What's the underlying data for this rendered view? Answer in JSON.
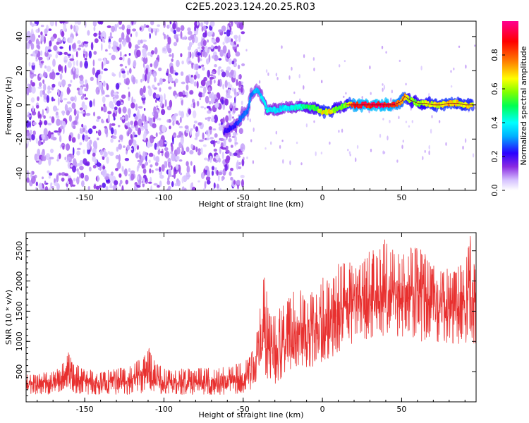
{
  "chart_data": [
    {
      "type": "heatmap",
      "title": "C2E5.2023.124.20.25.R03",
      "xlabel": "Height of straight line (km)",
      "ylabel": "Frequency (Hz)",
      "xlim": [
        -187,
        97
      ],
      "ylim": [
        -50,
        49
      ],
      "xticks": [
        -150,
        -100,
        -50,
        0,
        50
      ],
      "yticks": [
        -40,
        -20,
        0,
        20,
        40
      ],
      "colorbar": {
        "label": "Normalized spectral amplitude",
        "range": [
          0,
          1
        ],
        "ticks": [
          "0.0",
          "0.2",
          "0.4",
          "0.6",
          "0.8"
        ],
        "tick_values": [
          0.0,
          0.2,
          0.4,
          0.6,
          0.8
        ],
        "colors": [
          "#ffffff",
          "#c9a8ff",
          "#8a2be2",
          "#2a00ff",
          "#00b0ff",
          "#00ffff",
          "#00ff50",
          "#80ff00",
          "#ffff00",
          "#ff8000",
          "#ff0000",
          "#ff0090"
        ]
      },
      "noise_region": {
        "x_from": -187,
        "x_to": -50,
        "freq_from": -50,
        "freq_to": 49,
        "typical_amplitude": 0.15
      },
      "signal_ridge": {
        "x": [
          -62,
          -55,
          -50,
          -47,
          -45,
          -42,
          -40,
          -37,
          -35,
          -30,
          -25,
          -20,
          -15,
          -10,
          -5,
          0,
          5,
          10,
          15,
          20,
          30,
          40,
          45,
          50,
          52,
          55,
          60,
          65,
          70,
          75,
          80,
          85,
          90,
          95
        ],
        "frequency": [
          -16,
          -12,
          -6,
          -3,
          6,
          9,
          8,
          2,
          -3,
          -3,
          -2,
          -2,
          -1,
          -1,
          -2,
          -4,
          -4,
          -2,
          0,
          0,
          0,
          0,
          0,
          2,
          5,
          3,
          1,
          1,
          0,
          0,
          1,
          1,
          0,
          0
        ],
        "amplitude": [
          0.2,
          0.25,
          0.3,
          0.3,
          0.3,
          0.35,
          0.35,
          0.4,
          0.42,
          0.4,
          0.4,
          0.4,
          0.45,
          0.5,
          0.55,
          0.7,
          0.7,
          0.55,
          0.6,
          0.9,
          0.95,
          0.95,
          0.9,
          0.8,
          0.75,
          0.6,
          0.6,
          0.65,
          0.7,
          0.7,
          0.75,
          0.7,
          0.7,
          0.7
        ]
      }
    },
    {
      "type": "line",
      "xlabel": "Height of straight line (km)",
      "ylabel": "SNR (10 * v/v)",
      "xlim": [
        -187,
        97
      ],
      "ylim": [
        0,
        2800
      ],
      "xticks": [
        -150,
        -100,
        -50,
        0,
        50
      ],
      "yticks": [
        500,
        1000,
        1500,
        2000,
        2500
      ],
      "series": [
        {
          "name": "SNR",
          "color": "#e8302f",
          "x": [
            -187,
            -170,
            -162,
            -160,
            -158,
            -150,
            -140,
            -120,
            -112,
            -110,
            -107,
            -100,
            -80,
            -60,
            -50,
            -45,
            -40,
            -38,
            -35,
            -33,
            -30,
            -25,
            -20,
            -15,
            -10,
            -5,
            0,
            5,
            10,
            15,
            20,
            25,
            30,
            40,
            50,
            60,
            70,
            80,
            90,
            93,
            97
          ],
          "high": [
            450,
            500,
            700,
            850,
            650,
            550,
            500,
            600,
            800,
            950,
            700,
            550,
            550,
            600,
            650,
            800,
            1300,
            2100,
            2000,
            1400,
            1500,
            1600,
            1800,
            1900,
            1700,
            1900,
            2100,
            2000,
            2300,
            2400,
            2200,
            2400,
            2500,
            2700,
            2500,
            2600,
            2300,
            2200,
            2300,
            2800,
            2200
          ],
          "low": [
            120,
            120,
            200,
            250,
            150,
            120,
            120,
            120,
            150,
            200,
            150,
            120,
            120,
            120,
            150,
            200,
            300,
            500,
            400,
            350,
            300,
            400,
            450,
            500,
            500,
            600,
            650,
            700,
            800,
            900,
            950,
            1000,
            1050,
            1100,
            1050,
            1000,
            1000,
            950,
            950,
            900,
            900
          ],
          "mean": [
            280,
            300,
            450,
            550,
            380,
            320,
            300,
            320,
            450,
            500,
            380,
            300,
            300,
            320,
            380,
            480,
            800,
            1100,
            1000,
            800,
            850,
            900,
            1000,
            1100,
            1050,
            1150,
            1250,
            1300,
            1450,
            1550,
            1600,
            1650,
            1700,
            1700,
            1650,
            1650,
            1600,
            1600,
            1600,
            1650,
            1550
          ]
        }
      ]
    }
  ]
}
